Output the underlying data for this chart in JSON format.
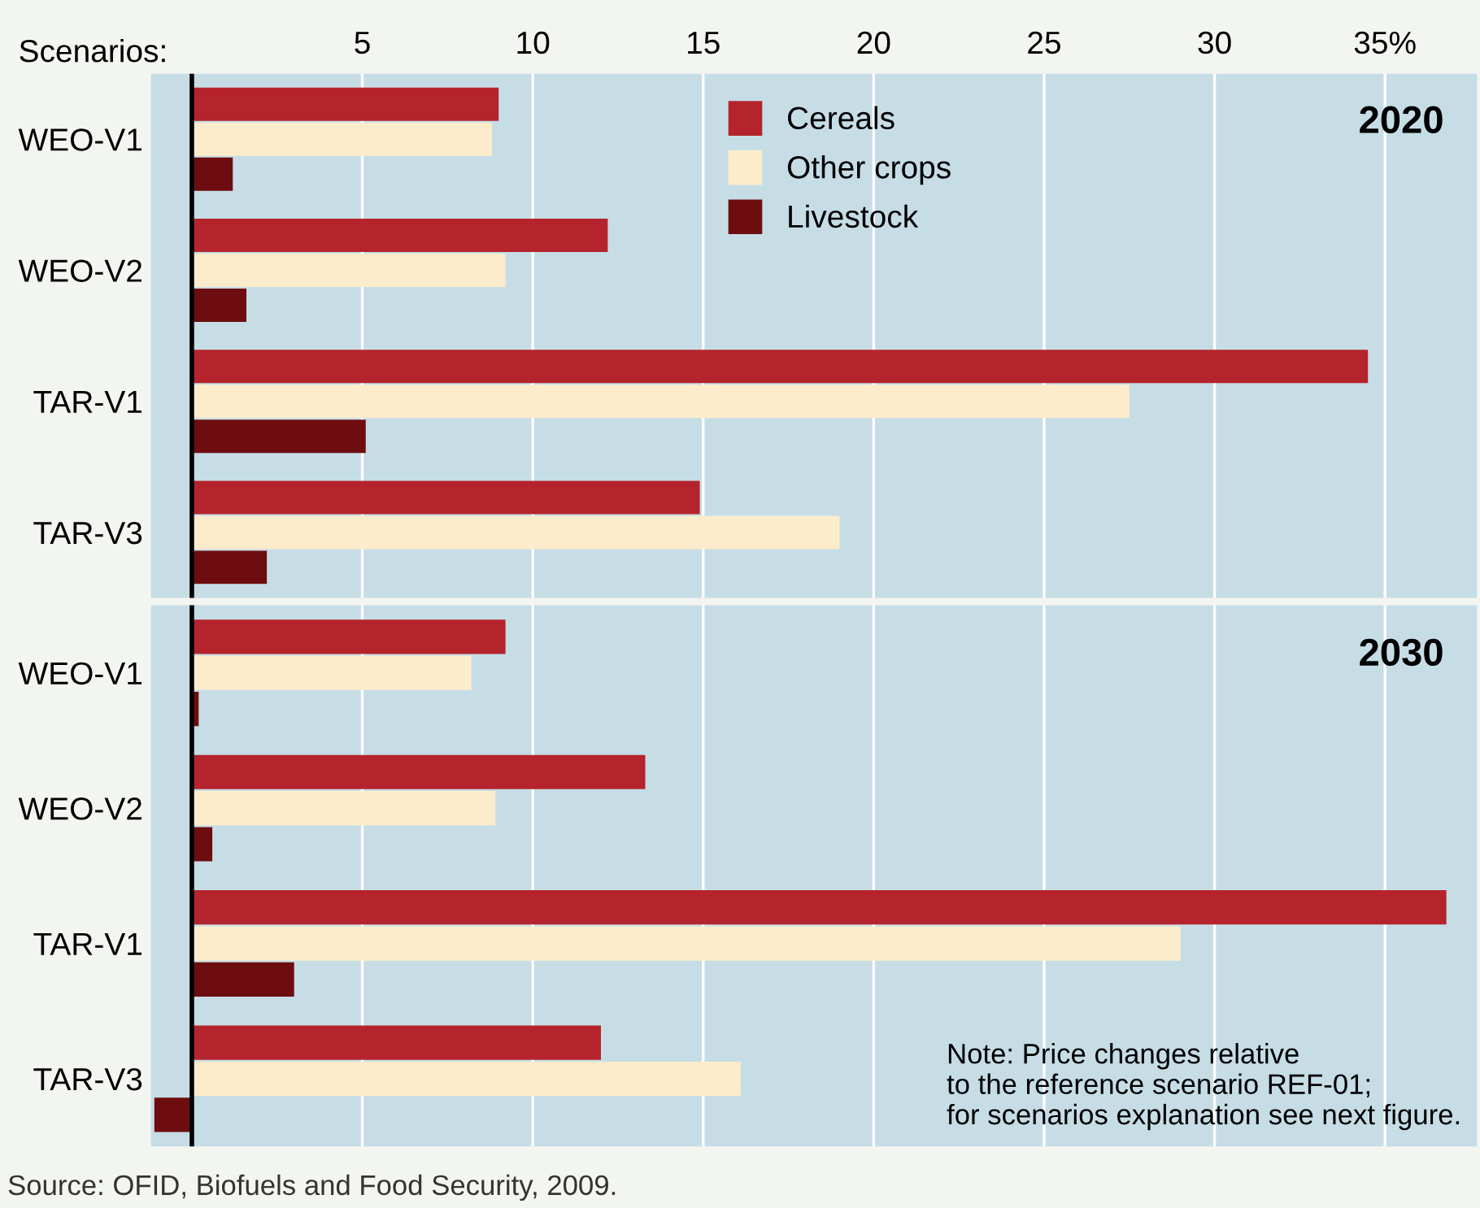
{
  "chart_data": [
    {
      "type": "bar",
      "orientation": "horizontal",
      "ylabel": "Scenarios:",
      "categories": [
        "WEO-V1",
        "WEO-V2",
        "TAR-V1",
        "TAR-V3"
      ],
      "series": [
        {
          "name": "Cereals",
          "color": "#b5242c",
          "values": [
            9.0,
            12.2,
            34.5,
            14.9
          ]
        },
        {
          "name": "Other crops",
          "color": "#fdeccb",
          "values": [
            8.8,
            9.2,
            27.5,
            19.0
          ]
        },
        {
          "name": "Livestock",
          "color": "#6e0d0f",
          "values": [
            1.2,
            1.6,
            5.1,
            2.2
          ]
        }
      ],
      "xlim": [
        -1.2,
        37.7
      ],
      "xticks": [
        5,
        10,
        15,
        20,
        25,
        30,
        {
          "value": 35,
          "label": "35%"
        }
      ],
      "grid": "x",
      "legend": "top",
      "annotations": [
        "2020"
      ]
    },
    {
      "type": "bar",
      "orientation": "horizontal",
      "categories": [
        "WEO-V1",
        "WEO-V2",
        "TAR-V1",
        "TAR-V3"
      ],
      "series": [
        {
          "color": "#b5242c",
          "values": [
            9.2,
            13.3,
            36.8,
            12.0
          ]
        },
        {
          "color": "#fdeccb",
          "values": [
            8.2,
            8.9,
            29.0,
            16.1
          ]
        },
        {
          "color": "#6e0d0f",
          "values": [
            0.2,
            0.6,
            3.0,
            -1.1
          ]
        }
      ],
      "xlim": [
        -1.2,
        37.7
      ],
      "xticks": [
        5,
        10,
        15,
        20,
        25,
        30,
        35
      ],
      "grid": "x",
      "tick_labels": "y",
      "annotations": [
        "2030",
        "Note: Price changes relative\nto the reference scenario REF-01;\nfor scenarios explanation see next figure.",
        "Source: OFID, Biofuels and Food Security, 2009."
      ]
    }
  ]
}
